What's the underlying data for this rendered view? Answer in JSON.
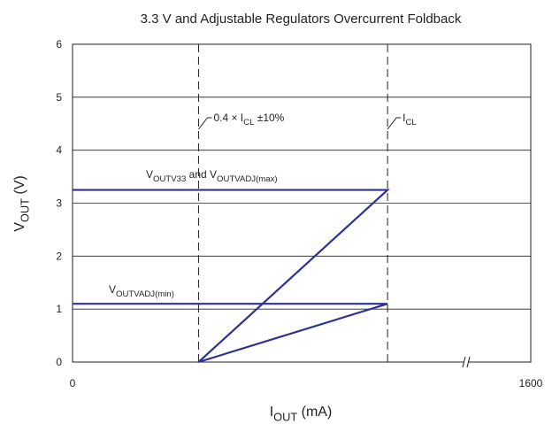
{
  "chart_data": {
    "type": "line",
    "title": "3.3 V and Adjustable Regulators Overcurrent Foldback",
    "ylabel": [
      {
        "text": "V"
      },
      {
        "text": "OUT",
        "sub": true
      },
      {
        "text": " (V)"
      }
    ],
    "xlabel": [
      {
        "text": "I"
      },
      {
        "text": "OUT",
        "sub": true
      },
      {
        "text": " (mA)"
      }
    ],
    "xlim": [
      0,
      1600
    ],
    "xticks": [
      0,
      1600
    ],
    "ylim": [
      0,
      6
    ],
    "yticks": [
      0,
      1,
      2,
      3,
      4,
      5,
      6
    ],
    "grid": true,
    "series": [
      {
        "name_parts": [
          {
            "text": "V"
          },
          {
            "text": "OUTV33",
            "sub": true
          },
          {
            "text": " and V"
          },
          {
            "text": "OUTVADJ(max)",
            "sub": true
          }
        ],
        "color": "#2e3192",
        "x": [
          0,
          1100,
          440
        ],
        "values": [
          3.25,
          3.25,
          0
        ]
      },
      {
        "name_parts": [
          {
            "text": "V"
          },
          {
            "text": "OUTVADJ(min)",
            "sub": true
          }
        ],
        "color": "#2e3192",
        "x": [
          0,
          1100,
          440
        ],
        "values": [
          1.1,
          1.1,
          0
        ]
      }
    ],
    "vlines": [
      {
        "x": 440,
        "label": [
          {
            "text": "0.4 × I"
          },
          {
            "text": "CL",
            "sub": true
          },
          {
            "text": " ±10%"
          }
        ]
      },
      {
        "x": 1100,
        "label": [
          {
            "text": "I"
          },
          {
            "text": "CL",
            "sub": true
          }
        ]
      }
    ]
  }
}
